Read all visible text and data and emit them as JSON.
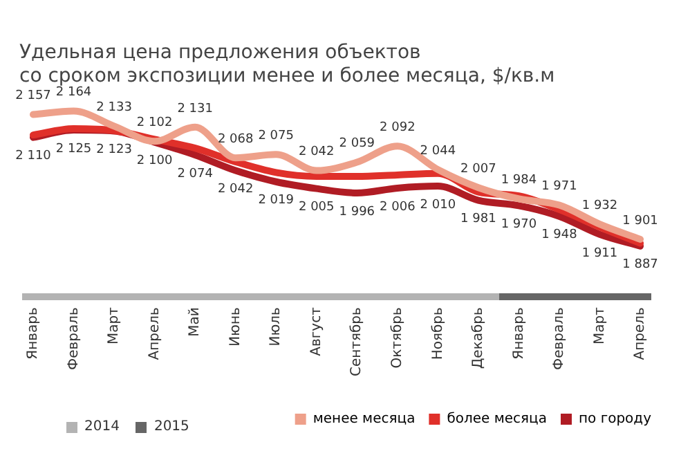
{
  "chart_data": {
    "type": "line",
    "title": "Удельная цена предложения объектов\nсо сроком экспозиции менее и более месяца, $/кв.м",
    "categories": [
      "Январь",
      "Февраль",
      "Март",
      "Апрель",
      "Май",
      "Июнь",
      "Июль",
      "Август",
      "Сентябрь",
      "Октябрь",
      "Ноябрь",
      "Декабрь",
      "Январь",
      "Февраль",
      "Март",
      "Апрель"
    ],
    "series": [
      {
        "name": "менее месяца",
        "color": "#eea08a",
        "values": [
          2157,
          2164,
          2133,
          2102,
          2131,
          2068,
          2075,
          2042,
          2059,
          2092,
          2044,
          2007,
          1984,
          1971,
          1932,
          1901
        ],
        "value_labels": [
          "2 157",
          "2 164",
          "2 133",
          "2 102",
          "2 131",
          "2 068",
          "2 075",
          "2 042",
          "2 059",
          "2 092",
          "2 044",
          "2 007",
          "1 984",
          "1 971",
          "1 932",
          "1 901"
        ]
      },
      {
        "name": "более месяца",
        "color": "#e0302a",
        "values": [
          2115,
          2128,
          2124,
          2106,
          2088,
          2060,
          2038,
          2030,
          2030,
          2033,
          2036,
          1998,
          1990,
          1962,
          1926,
          1893
        ]
      },
      {
        "name": "по городу",
        "color": "#b01c24",
        "values": [
          2110,
          2125,
          2123,
          2100,
          2074,
          2042,
          2019,
          2005,
          1996,
          2006,
          2010,
          1981,
          1970,
          1948,
          1911,
          1887
        ],
        "value_labels": [
          "2 110",
          "2 125",
          "2 123",
          "2 100",
          "2 074",
          "2 042",
          "2 019",
          "2 005",
          "1 996",
          "2 006",
          "2 010",
          "1 981",
          "1 970",
          "1 948",
          "1 911",
          "1 887"
        ]
      }
    ],
    "annotations": [
      "2014",
      "2015"
    ],
    "legend": "bottom",
    "grid": false,
    "marker": "none",
    "line_style": "solid"
  }
}
